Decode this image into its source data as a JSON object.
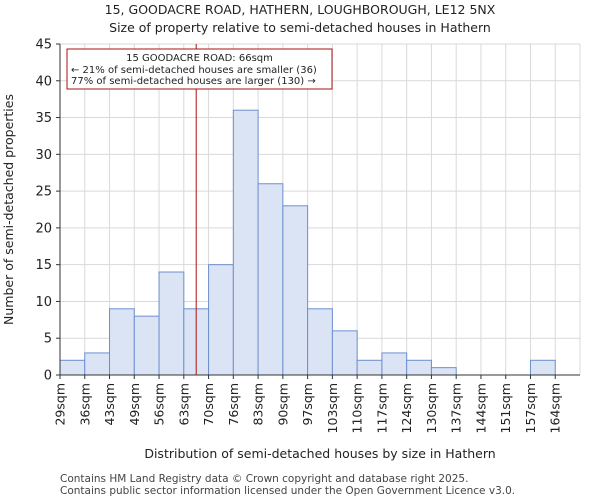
{
  "page": {
    "title_line1": "15, GOODACRE ROAD, HATHERN, LOUGHBOROUGH, LE12 5NX",
    "title_line2": "Size of property relative to semi-detached houses in Hathern",
    "footer_line1": "Contains HM Land Registry data © Crown copyright and database right 2025.",
    "footer_line2": "Contains public sector information licensed under the Open Government Licence v3.0."
  },
  "chart_data": {
    "type": "bar",
    "title": "Size of property relative to semi-detached houses in Hathern",
    "xlabel": "Distribution of semi-detached houses by size in Hathern",
    "ylabel": "Number of semi-detached properties",
    "categories": [
      "29sqm",
      "36sqm",
      "43sqm",
      "49sqm",
      "56sqm",
      "63sqm",
      "70sqm",
      "76sqm",
      "83sqm",
      "90sqm",
      "97sqm",
      "103sqm",
      "110sqm",
      "117sqm",
      "124sqm",
      "130sqm",
      "137sqm",
      "144sqm",
      "151sqm",
      "157sqm",
      "164sqm"
    ],
    "values": [
      2,
      3,
      9,
      8,
      14,
      9,
      15,
      36,
      26,
      23,
      9,
      6,
      2,
      3,
      2,
      1,
      0,
      0,
      0,
      2,
      0
    ],
    "ylim": [
      0,
      45
    ],
    "yticks": [
      0,
      5,
      10,
      15,
      20,
      25,
      30,
      35,
      40,
      45
    ],
    "bar_color": "#dbe4f5",
    "bar_edge_color": "#6d8fcf",
    "marker": {
      "value_sqm": 66,
      "position_bins": 5.5,
      "color": "#aa1111",
      "label_line1": "15 GOODACRE ROAD: 66sqm",
      "label_line2": "← 21% of semi-detached houses are smaller (36)",
      "label_line3": "77% of semi-detached houses are larger (130) →"
    }
  }
}
